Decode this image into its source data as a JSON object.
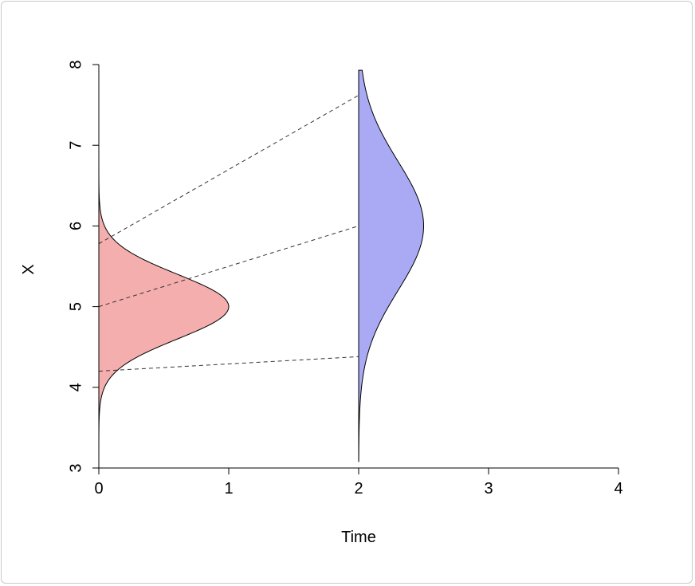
{
  "chart_data": {
    "type": "area",
    "title": "",
    "xlabel": "Time",
    "ylabel": "X",
    "xlim": [
      0,
      4
    ],
    "ylim": [
      3,
      8
    ],
    "x_ticks": [
      0,
      1,
      2,
      3,
      4
    ],
    "y_ticks": [
      3,
      4,
      5,
      6,
      7,
      8
    ],
    "x_tick_labels": [
      "0",
      "1",
      "2",
      "3",
      "4"
    ],
    "y_tick_labels": [
      "3",
      "4",
      "5",
      "6",
      "7",
      "8"
    ],
    "grid": false,
    "densities": [
      {
        "time": 0,
        "mean": 5,
        "sd": 0.4,
        "peak_width": 1.0,
        "fill": "#f4aeae"
      },
      {
        "time": 2,
        "mean": 6,
        "sd": 0.8,
        "peak_width": 0.5,
        "fill": "#aaaaf4"
      }
    ],
    "mapping_lines": [
      {
        "from": [
          0,
          4.2
        ],
        "to": [
          2,
          4.38
        ]
      },
      {
        "from": [
          0,
          5.0
        ],
        "to": [
          2,
          6.0
        ]
      },
      {
        "from": [
          0,
          5.78
        ],
        "to": [
          2,
          7.62
        ]
      }
    ]
  }
}
